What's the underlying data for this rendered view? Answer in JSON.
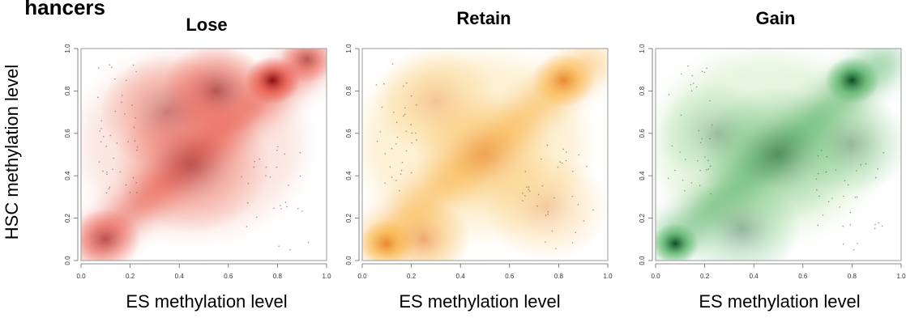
{
  "figure": {
    "top_left_label": "hancers",
    "shared_ylabel": "HSC methylation level"
  },
  "chart_data": [
    {
      "type": "heatmap",
      "title": "Lose",
      "xlabel": "ES methylation level",
      "ylabel": "",
      "xlim": [
        0,
        1
      ],
      "ylim": [
        0,
        1
      ],
      "x_ticks": [
        "0.0",
        "0.2",
        "0.4",
        "0.6",
        "0.8",
        "1.0"
      ],
      "y_ticks": [
        "0.0",
        "0.2",
        "0.4",
        "0.6",
        "0.8",
        "1.0"
      ],
      "grid": false,
      "colors": {
        "light": "#fbe3dc",
        "mid": "#e8493a",
        "dark": "#8b0d10"
      },
      "density_peaks": [
        {
          "x": 0.78,
          "y": 0.85,
          "weight": 1.0,
          "spread": 0.07
        },
        {
          "x": 0.55,
          "y": 0.8,
          "weight": 0.65,
          "spread": 0.14
        },
        {
          "x": 0.35,
          "y": 0.7,
          "weight": 0.45,
          "spread": 0.17
        },
        {
          "x": 0.1,
          "y": 0.1,
          "weight": 0.55,
          "spread": 0.09
        },
        {
          "x": 0.45,
          "y": 0.45,
          "weight": 0.5,
          "spread": 0.2
        },
        {
          "x": 0.92,
          "y": 0.95,
          "weight": 0.55,
          "spread": 0.07
        }
      ]
    },
    {
      "type": "heatmap",
      "title": "Retain",
      "xlabel": "ES methylation level",
      "ylabel": "",
      "xlim": [
        0,
        1
      ],
      "ylim": [
        0,
        1
      ],
      "x_ticks": [
        "0.0",
        "0.2",
        "0.4",
        "0.6",
        "0.8",
        "1.0"
      ],
      "y_ticks": [
        "0.0",
        "0.2",
        "0.4",
        "0.6",
        "0.8",
        "1.0"
      ],
      "grid": false,
      "colors": {
        "light": "#fdf0cf",
        "mid": "#f9b13e",
        "dark": "#e4751a"
      },
      "density_peaks": [
        {
          "x": 0.1,
          "y": 0.08,
          "weight": 0.9,
          "spread": 0.07
        },
        {
          "x": 0.25,
          "y": 0.1,
          "weight": 0.6,
          "spread": 0.12
        },
        {
          "x": 0.82,
          "y": 0.85,
          "weight": 0.8,
          "spread": 0.08
        },
        {
          "x": 0.5,
          "y": 0.5,
          "weight": 0.5,
          "spread": 0.18
        },
        {
          "x": 0.3,
          "y": 0.75,
          "weight": 0.35,
          "spread": 0.16
        },
        {
          "x": 0.75,
          "y": 0.25,
          "weight": 0.35,
          "spread": 0.16
        }
      ]
    },
    {
      "type": "heatmap",
      "title": "Gain",
      "xlabel": "ES methylation level",
      "ylabel": "",
      "xlim": [
        0,
        1
      ],
      "ylim": [
        0,
        1
      ],
      "x_ticks": [
        "0.0",
        "0.2",
        "0.4",
        "0.6",
        "0.8",
        "1.0"
      ],
      "y_ticks": [
        "0.0",
        "0.2",
        "0.4",
        "0.6",
        "0.8",
        "1.0"
      ],
      "grid": false,
      "colors": {
        "light": "#e3f4dc",
        "mid": "#4caf5e",
        "dark": "#0b4d22"
      },
      "density_peaks": [
        {
          "x": 0.08,
          "y": 0.08,
          "weight": 1.0,
          "spread": 0.06
        },
        {
          "x": 0.8,
          "y": 0.85,
          "weight": 1.0,
          "spread": 0.07
        },
        {
          "x": 0.5,
          "y": 0.5,
          "weight": 0.5,
          "spread": 0.2
        },
        {
          "x": 0.35,
          "y": 0.15,
          "weight": 0.4,
          "spread": 0.15
        },
        {
          "x": 0.8,
          "y": 0.55,
          "weight": 0.35,
          "spread": 0.15
        },
        {
          "x": 0.25,
          "y": 0.6,
          "weight": 0.3,
          "spread": 0.15
        }
      ]
    }
  ]
}
